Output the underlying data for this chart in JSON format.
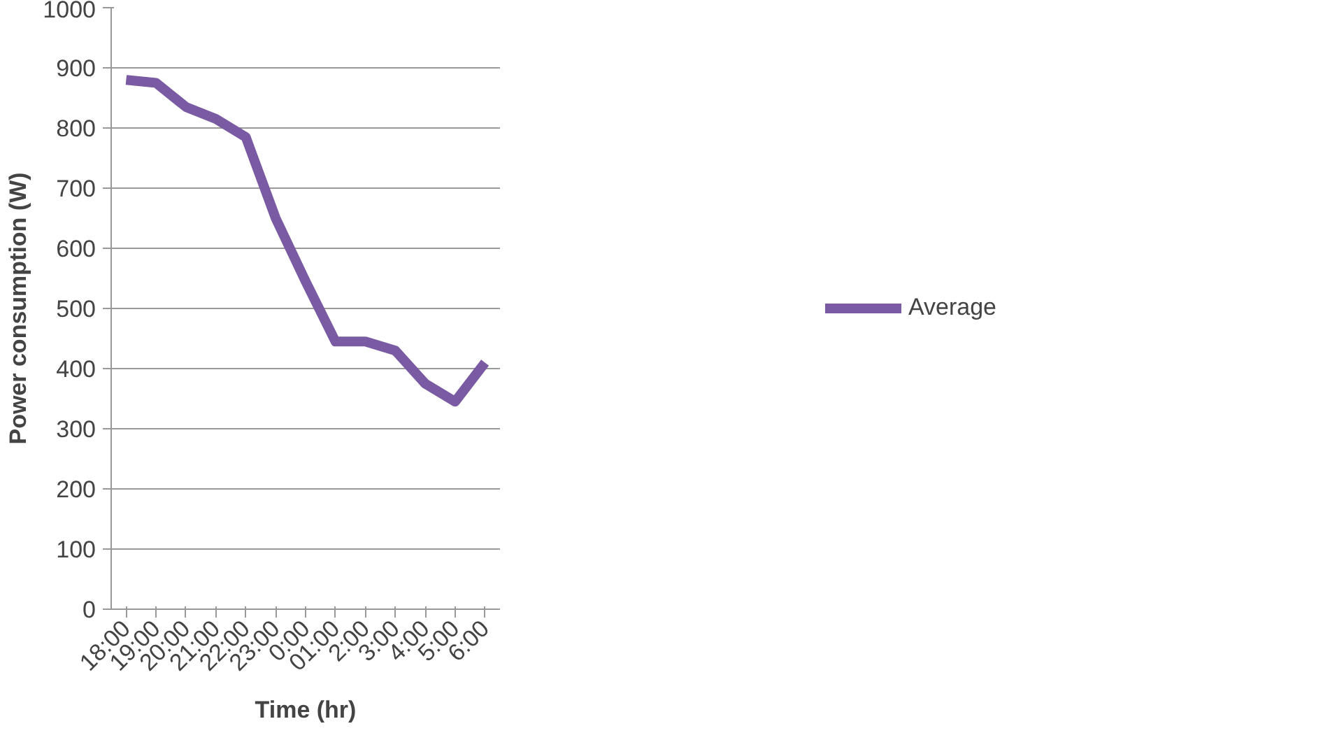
{
  "chart_data": {
    "type": "line",
    "xlabel": "Time (hr)",
    "ylabel": "Power consumption (W)",
    "categories": [
      "18:00",
      "19:00",
      "20:00",
      "21:00",
      "22:00",
      "23:00",
      "0:00",
      "01:00",
      "2:00",
      "3:00",
      "4:00",
      "5:00",
      "6:00"
    ],
    "series": [
      {
        "name": "Average",
        "color": "#7a5ba3",
        "values": [
          880,
          875,
          835,
          815,
          785,
          650,
          545,
          445,
          445,
          430,
          375,
          345,
          410
        ]
      }
    ],
    "ylim": [
      0,
      1000
    ],
    "yticks": [
      0,
      100,
      200,
      300,
      400,
      500,
      600,
      700,
      800,
      900,
      1000
    ],
    "grid": "y",
    "legend": "right",
    "marker": "none",
    "line_style": "solid"
  }
}
